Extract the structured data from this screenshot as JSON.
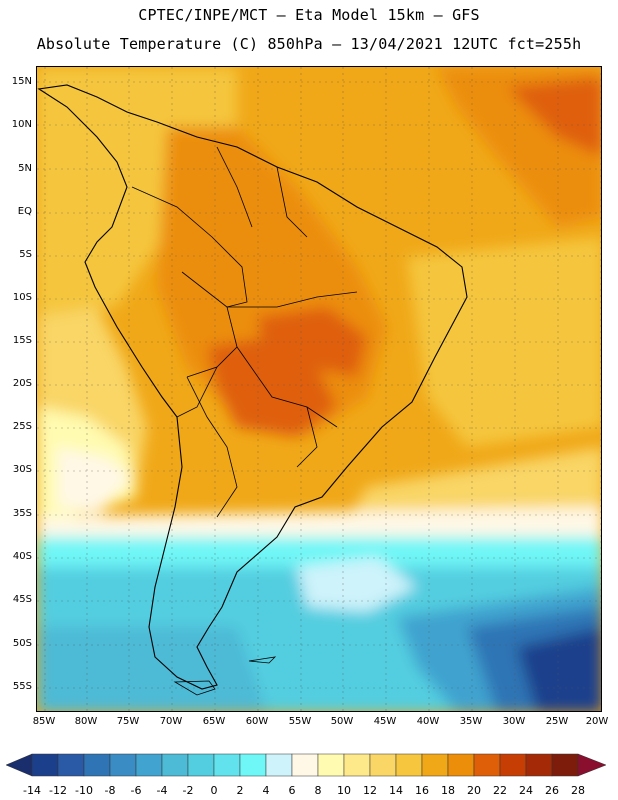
{
  "header": {
    "line1": "CPTEC/INPE/MCT –  Eta Model 15km – GFS",
    "line2": "Absolute Temperature (C) 850hPa – 13/04/2021 12UTC fct=255h"
  },
  "map": {
    "region": "South America",
    "lat_labels": [
      "15N",
      "10N",
      "5N",
      "EQ",
      "5S",
      "10S",
      "15S",
      "20S",
      "25S",
      "30S",
      "35S",
      "40S",
      "45S",
      "50S",
      "55S"
    ],
    "lon_labels": [
      "85W",
      "80W",
      "75W",
      "70W",
      "65W",
      "60W",
      "55W",
      "50W",
      "45W",
      "40W",
      "35W",
      "30W",
      "25W",
      "20W"
    ]
  },
  "colorbar": {
    "labels": [
      "-14",
      "-12",
      "-10",
      "-8",
      "-6",
      "-4",
      "-2",
      "0",
      "2",
      "4",
      "6",
      "8",
      "10",
      "12",
      "14",
      "16",
      "18",
      "20",
      "22",
      "24",
      "26",
      "28"
    ],
    "colors": [
      "#1c3f8c",
      "#2a5aa5",
      "#2f74b5",
      "#3a8cc4",
      "#41a3cf",
      "#4dbad6",
      "#53cee0",
      "#62e2ec",
      "#6ff6f6",
      "#cef3fb",
      "#fff8e6",
      "#fffbb0",
      "#fde88a",
      "#f9d666",
      "#f5c63e",
      "#f0a818",
      "#ec8e0a",
      "#df5f08",
      "#c63e04",
      "#a42a07",
      "#7e1c0c"
    ],
    "under_color": "#1a2e6e",
    "over_color": "#8a0e2e"
  }
}
